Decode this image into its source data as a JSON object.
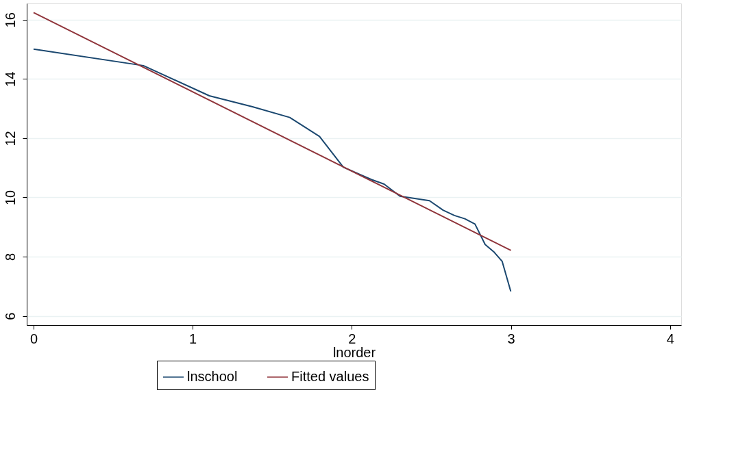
{
  "chart_data": {
    "type": "line",
    "xlabel": "lnorder",
    "xlim": [
      -0.043,
      4.07
    ],
    "ylim": [
      5.69,
      16.55
    ],
    "xticks": [
      0,
      1,
      2,
      3,
      4
    ],
    "yticks": [
      6,
      8,
      10,
      12,
      14,
      16
    ],
    "grid": "y",
    "legend": "bottom",
    "line_style": "solid",
    "marker": "none",
    "series": [
      {
        "name": "lnschool",
        "color": "#1a476f",
        "x": [
          0,
          0.69,
          1.105,
          1.376,
          1.61,
          1.797,
          1.947,
          2.125,
          2.203,
          2.303,
          2.488,
          2.574,
          2.645,
          2.71,
          2.774,
          2.838,
          2.895,
          2.945,
          2.999
        ],
        "values": [
          15.01,
          14.45,
          13.43,
          13.06,
          12.7,
          12.06,
          11.02,
          10.6,
          10.45,
          10.04,
          9.89,
          9.57,
          9.39,
          9.28,
          9.1,
          8.41,
          8.15,
          7.84,
          6.83
        ]
      },
      {
        "name": "Fitted values",
        "color": "#90353b",
        "type": "line",
        "x": [
          0,
          3.0
        ],
        "values": [
          16.24,
          8.21
        ]
      }
    ]
  }
}
